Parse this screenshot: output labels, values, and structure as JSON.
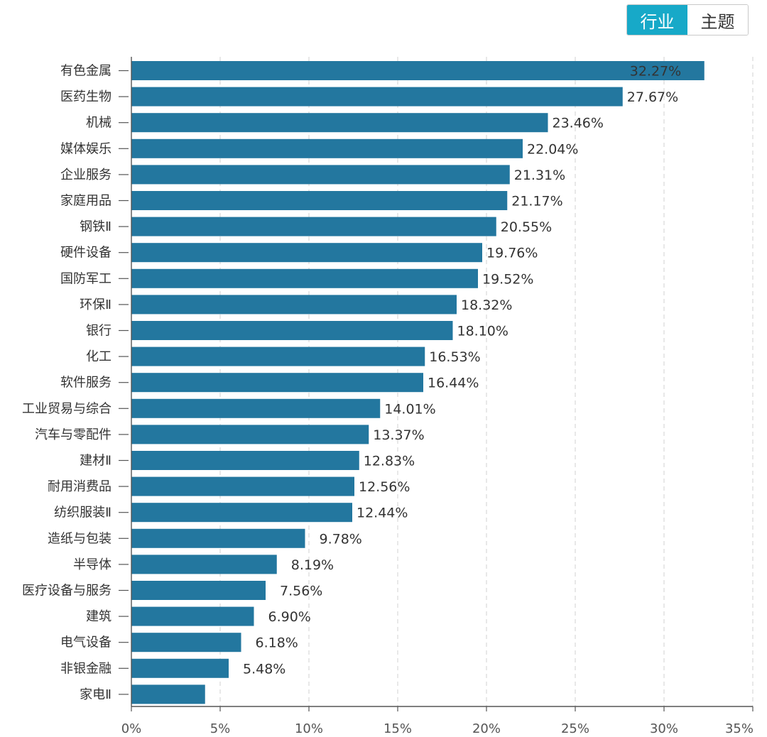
{
  "toggle": {
    "options": [
      {
        "label": "行业",
        "active": true
      },
      {
        "label": "主题",
        "active": false
      }
    ]
  },
  "colors": {
    "bar": "#23779f",
    "toggle_active": "#17a9c8",
    "grid": "#d8d8d8",
    "axis": "#555555"
  },
  "chart_data": {
    "type": "bar",
    "orientation": "horizontal",
    "categories": [
      "有色金属",
      "医药生物",
      "机械",
      "媒体娱乐",
      "企业服务",
      "家庭用品",
      "钢铁Ⅱ",
      "硬件设备",
      "国防军工",
      "环保Ⅱ",
      "银行",
      "化工",
      "软件服务",
      "工业贸易与综合",
      "汽车与零配件",
      "建材Ⅱ",
      "耐用消费品",
      "纺织服装Ⅱ",
      "造纸与包装",
      "半导体",
      "医疗设备与服务",
      "建筑",
      "电气设备",
      "非银金融",
      "家电Ⅱ"
    ],
    "values": [
      32.27,
      27.67,
      23.46,
      22.04,
      21.31,
      21.17,
      20.55,
      19.76,
      19.52,
      18.32,
      18.1,
      16.53,
      16.44,
      14.01,
      13.37,
      12.83,
      12.56,
      12.44,
      9.78,
      8.19,
      7.56,
      6.9,
      6.18,
      5.48,
      4.15
    ],
    "value_labels": [
      "32.27%",
      "27.67%",
      "23.46%",
      "22.04%",
      "21.31%",
      "21.17%",
      "20.55%",
      "19.76%",
      "19.52%",
      "18.32%",
      "18.10%",
      "16.53%",
      "16.44%",
      "14.01%",
      "13.37%",
      "12.83%",
      "12.56%",
      "12.44%",
      "9.78%",
      "8.19%",
      "7.56%",
      "6.90%",
      "6.18%",
      "5.48%",
      ""
    ],
    "xlim": [
      0,
      35
    ],
    "x_ticks": [
      "0%",
      "5%",
      "10%",
      "15%",
      "20%",
      "25%",
      "30%",
      "35%"
    ],
    "grid": "vertical-dashed"
  }
}
